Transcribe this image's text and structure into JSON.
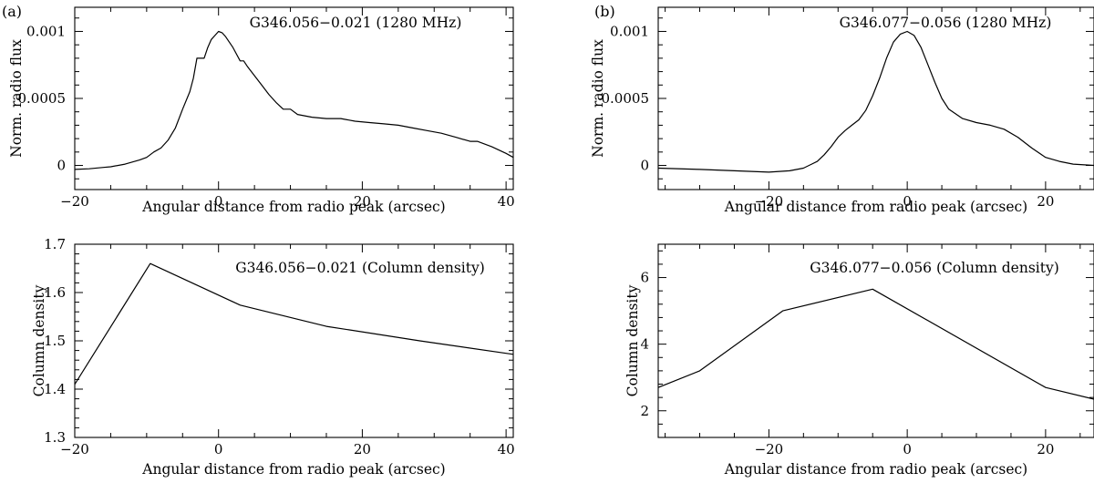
{
  "chart_data": [
    {
      "id": "a_top",
      "type": "line",
      "panel_label": "(a)",
      "title": "G346.056−0.021 (1280 MHz)",
      "xlabel": "Angular distance from radio peak (arcsec)",
      "ylabel": "Norm. radio flux",
      "xlim": [
        -20,
        41
      ],
      "ylim": [
        -0.00018,
        0.00118
      ],
      "xticks": [
        -20,
        0,
        20,
        40
      ],
      "xtick_labels": [
        "−20",
        "0",
        "20",
        "40"
      ],
      "yticks": [
        0,
        0.0005,
        0.001
      ],
      "ytick_labels": [
        "0",
        "0.0005",
        "0.001"
      ],
      "x": [
        -20,
        -18,
        -16,
        -15,
        -13,
        -11,
        -10,
        -9,
        -8,
        -7,
        -6,
        -5,
        -4,
        -3.5,
        -3,
        -2.5,
        -2,
        -1.5,
        -1,
        -0.5,
        0,
        0.5,
        1,
        1.5,
        2,
        3,
        3.5,
        4,
        5,
        6,
        7,
        8,
        9,
        10,
        11,
        12,
        13,
        15,
        17,
        19,
        21,
        23,
        25,
        27,
        29,
        31,
        33,
        35,
        36,
        38,
        40,
        41
      ],
      "values": [
        -3e-05,
        -2.5e-05,
        -1.5e-05,
        -1e-05,
        1e-05,
        4e-05,
        6e-05,
        0.0001,
        0.00013,
        0.00019,
        0.00028,
        0.00042,
        0.00055,
        0.00065,
        0.0008,
        0.0008,
        0.0008,
        0.00088,
        0.00094,
        0.00097,
        0.001,
        0.00099,
        0.00096,
        0.00092,
        0.00088,
        0.00078,
        0.00078,
        0.00074,
        0.00067,
        0.0006,
        0.00053,
        0.00047,
        0.00042,
        0.00042,
        0.00038,
        0.00037,
        0.00036,
        0.00035,
        0.00035,
        0.00033,
        0.00032,
        0.00031,
        0.0003,
        0.00028,
        0.00026,
        0.00024,
        0.00021,
        0.00018,
        0.00018,
        0.00014,
        9e-05,
        6e-05
      ]
    },
    {
      "id": "a_bottom",
      "type": "line",
      "title": "G346.056−0.021 (Column density)",
      "xlabel": "Angular distance from radio peak (arcsec)",
      "ylabel": "Column density",
      "xlim": [
        -20,
        41
      ],
      "ylim": [
        1.3,
        1.7
      ],
      "xticks": [
        -20,
        0,
        20,
        40
      ],
      "xtick_labels": [
        "−20",
        "0",
        "20",
        "40"
      ],
      "yticks": [
        1.3,
        1.4,
        1.5,
        1.6,
        1.7
      ],
      "ytick_labels": [
        "1.3",
        "1.4",
        "1.5",
        "1.6",
        "1.7"
      ],
      "x": [
        -20,
        -9.5,
        3,
        15,
        28,
        41
      ],
      "values": [
        1.41,
        1.66,
        1.574,
        1.53,
        1.5,
        1.472
      ]
    },
    {
      "id": "b_top",
      "type": "line",
      "panel_label": "(b)",
      "title": "G346.077−0.056 (1280 MHz)",
      "xlabel": "Angular distance from radio peak (arcsec)",
      "ylabel": "Norm. radio flux",
      "xlim": [
        -36,
        27
      ],
      "ylim": [
        -0.00018,
        0.00118
      ],
      "xticks": [
        -20,
        0,
        20
      ],
      "xtick_labels": [
        "−20",
        "0",
        "20"
      ],
      "yticks": [
        0,
        0.0005,
        0.001
      ],
      "ytick_labels": [
        "0",
        "0.0005",
        "0.001"
      ],
      "x": [
        -36,
        -30,
        -25,
        -20,
        -17,
        -15,
        -13,
        -12,
        -11,
        -10,
        -9,
        -8,
        -7,
        -6,
        -5,
        -4,
        -3,
        -2,
        -1,
        0,
        1,
        2,
        3,
        4,
        5,
        6,
        8,
        10,
        12,
        14,
        16,
        18,
        20,
        22,
        24,
        27
      ],
      "values": [
        -2e-05,
        -3e-05,
        -4e-05,
        -5e-05,
        -4e-05,
        -2e-05,
        3e-05,
        8e-05,
        0.00014,
        0.00021,
        0.00026,
        0.0003,
        0.00034,
        0.00041,
        0.00052,
        0.00065,
        0.0008,
        0.00092,
        0.00098,
        0.001,
        0.00097,
        0.00088,
        0.00075,
        0.00062,
        0.0005,
        0.00042,
        0.00035,
        0.00032,
        0.0003,
        0.00027,
        0.00021,
        0.00013,
        6e-05,
        3e-05,
        1e-05,
        0
      ]
    },
    {
      "id": "b_bottom",
      "type": "line",
      "title": "G346.077−0.056 (Column density)",
      "xlabel": "Angular distance from radio peak (arcsec)",
      "ylabel": "Column density",
      "xlim": [
        -36,
        27
      ],
      "ylim": [
        1.2,
        7.0
      ],
      "xticks": [
        -20,
        0,
        20
      ],
      "xtick_labels": [
        "−20",
        "0",
        "20"
      ],
      "yticks": [
        2,
        4,
        6
      ],
      "ytick_labels": [
        "2",
        "4",
        "6"
      ],
      "x": [
        -36,
        -30,
        -18,
        -5,
        20,
        27
      ],
      "values": [
        2.7,
        3.2,
        5.0,
        5.65,
        2.7,
        2.35
      ]
    }
  ]
}
